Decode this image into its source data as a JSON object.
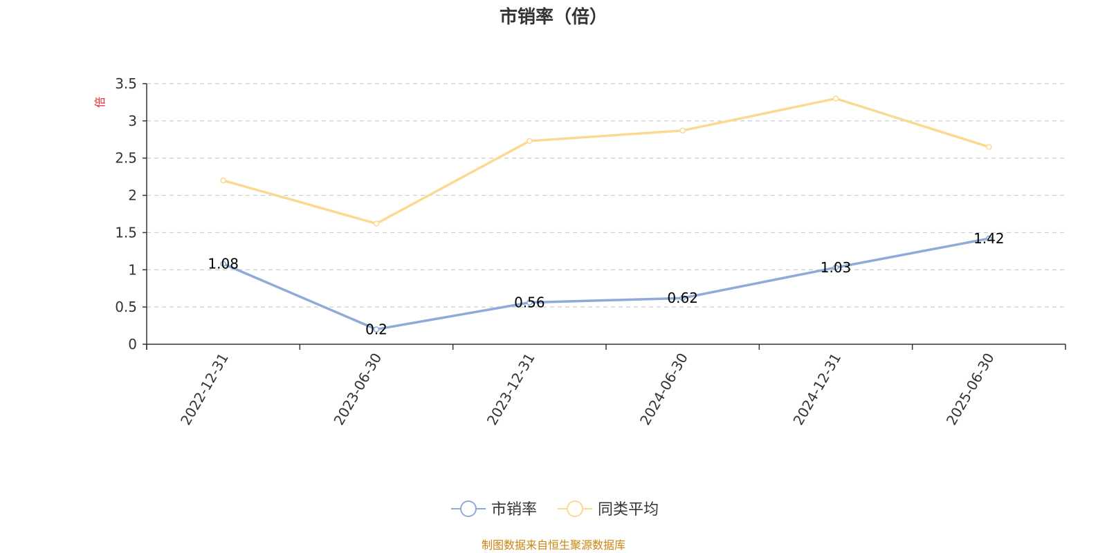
{
  "chart_data": {
    "type": "line",
    "title": "市销率（倍）",
    "ylabel": "倍",
    "categories": [
      "2022-12-31",
      "2023-06-30",
      "2023-12-31",
      "2024-06-30",
      "2024-12-31",
      "2025-06-30"
    ],
    "ylim": [
      0,
      3.5
    ],
    "yticks": [
      "0",
      "0.5",
      "1",
      "1.5",
      "2",
      "2.5",
      "3",
      "3.5"
    ],
    "grid": true,
    "legend_position": "bottom",
    "series": [
      {
        "name": "市销率",
        "values": [
          1.08,
          0.2,
          0.56,
          0.62,
          1.03,
          1.42
        ],
        "labels": [
          "1.08",
          "0.2",
          "0.56",
          "0.62",
          "1.03",
          "1.42"
        ],
        "color": "#8eaad6"
      },
      {
        "name": "同类平均",
        "values": [
          2.2,
          1.62,
          2.73,
          2.87,
          3.3,
          2.65
        ],
        "color": "#fcd991"
      }
    ]
  },
  "source": "制图数据来自恒生聚源数据库",
  "colors": {
    "axis": "#333333",
    "grid": "#cccccc",
    "unit": "#e8262c",
    "source": "#c9860f"
  }
}
